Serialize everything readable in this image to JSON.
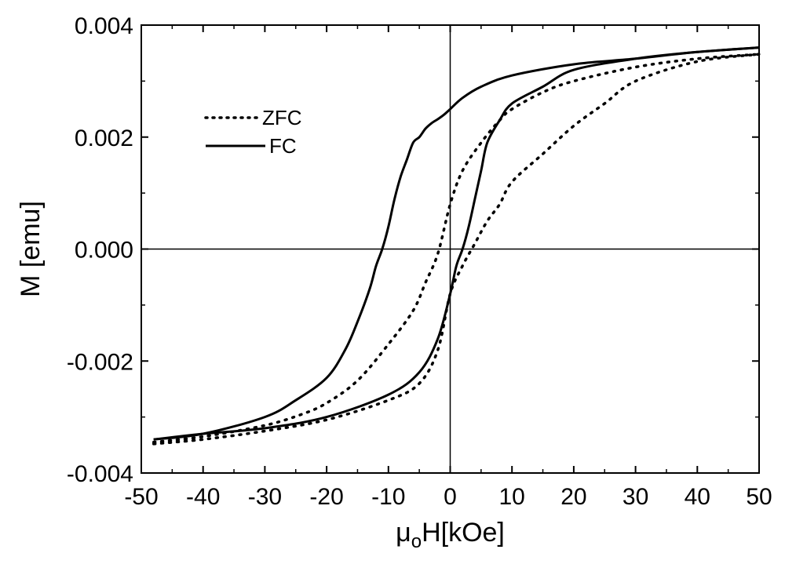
{
  "chart_data": {
    "type": "line",
    "xlabel_main": "μ",
    "xlabel_sub": "o",
    "xlabel_rest": "H[kOe]",
    "ylabel": "M [emu]",
    "xlim": [
      -50,
      50
    ],
    "ylim": [
      -0.004,
      0.004
    ],
    "x_ticks": [
      -50,
      -40,
      -30,
      -20,
      -10,
      0,
      10,
      20,
      30,
      40,
      50
    ],
    "x_tick_labels": [
      "-50",
      "-40",
      "-30",
      "-20",
      "-10",
      "0",
      "10",
      "20",
      "30",
      "40",
      "50"
    ],
    "y_ticks": [
      -0.004,
      -0.002,
      0.0,
      0.002,
      0.004
    ],
    "y_tick_labels": [
      "-0.004",
      "-0.002",
      "0.000",
      "0.002",
      "0.004"
    ],
    "grid": false,
    "zero_lines": true,
    "legend_position": "top-left",
    "series": [
      {
        "name": "ZFC",
        "style": "dotted",
        "branches": [
          {
            "x": [
              -48,
              -40,
              -30,
              -24,
              -20,
              -15,
              -10,
              -6,
              -4,
              -2,
              0,
              2,
              5,
              8,
              10,
              15,
              20,
              30,
              40,
              50
            ],
            "y": [
              -0.00345,
              -0.00335,
              -0.00315,
              -0.00295,
              -0.00275,
              -0.00235,
              -0.0017,
              -0.0011,
              -0.0006,
              -8e-05,
              0.0008,
              0.0014,
              0.0019,
              0.0023,
              0.0025,
              0.0028,
              0.003,
              0.00325,
              0.0034,
              0.00348
            ]
          },
          {
            "x": [
              -48,
              -40,
              -30,
              -20,
              -10,
              -5,
              -2,
              0,
              2,
              4,
              6,
              8,
              10,
              15,
              20,
              25,
              30,
              40,
              50
            ],
            "y": [
              -0.00348,
              -0.0034,
              -0.00325,
              -0.00305,
              -0.0027,
              -0.0024,
              -0.0018,
              -0.0008,
              -0.0003,
              0.0001,
              0.0005,
              0.0008,
              0.0012,
              0.0017,
              0.0022,
              0.0026,
              0.003,
              0.00335,
              0.00348
            ]
          }
        ]
      },
      {
        "name": "FC",
        "style": "solid",
        "branches": [
          {
            "x": [
              -48,
              -40,
              -30,
              -25,
              -20,
              -17,
              -15,
              -13,
              -12,
              -11,
              -10,
              -9,
              -8,
              -7,
              -6,
              -5,
              -4,
              -3,
              -2,
              -1,
              0,
              2,
              5,
              10,
              20,
              30,
              40,
              50
            ],
            "y": [
              -0.0034,
              -0.0033,
              -0.003,
              -0.0027,
              -0.0023,
              -0.0018,
              -0.0013,
              -0.0007,
              -0.0003,
              0.0,
              0.0004,
              0.0009,
              0.0013,
              0.0016,
              0.0019,
              0.002,
              0.00215,
              0.00225,
              0.00232,
              0.0024,
              0.0025,
              0.0027,
              0.0029,
              0.0031,
              0.0033,
              0.0034,
              0.00352,
              0.0036
            ]
          },
          {
            "x": [
              -48,
              -40,
              -30,
              -20,
              -10,
              -5,
              -2,
              0,
              1,
              2,
              3,
              4,
              5,
              6,
              8,
              10,
              15,
              20,
              30,
              40,
              50
            ],
            "y": [
              -0.0034,
              -0.0033,
              -0.0032,
              -0.003,
              -0.0026,
              -0.0022,
              -0.0016,
              -0.0008,
              -0.0003,
              0.0,
              0.0004,
              0.0009,
              0.0014,
              0.0019,
              0.0023,
              0.0026,
              0.0029,
              0.0032,
              0.0034,
              0.00352,
              0.0036
            ]
          }
        ]
      }
    ]
  }
}
